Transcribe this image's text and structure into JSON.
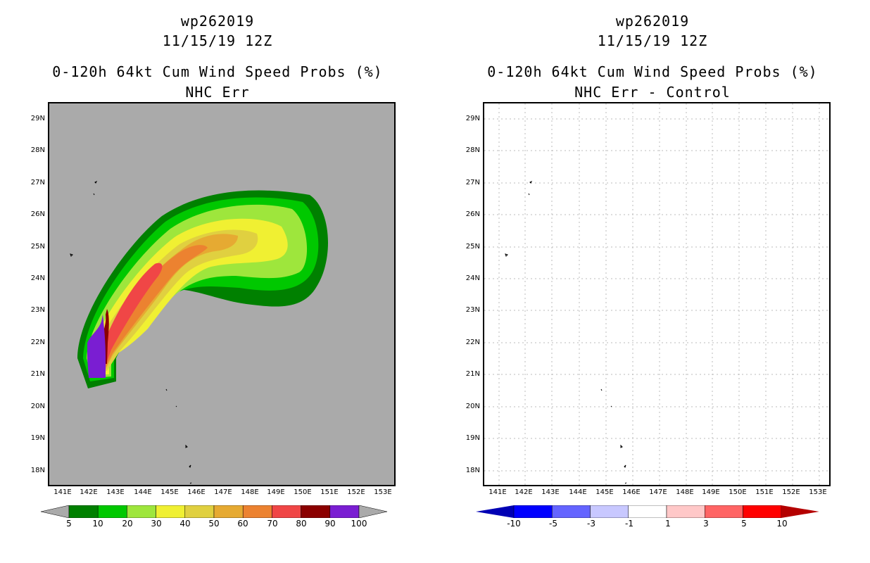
{
  "left_panel": {
    "title1": "wp262019",
    "title2": "11/15/19 12Z",
    "title3": "0-120h 64kt Cum Wind Speed Probs (%)",
    "title4": "NHC Err",
    "colorbar_labels": [
      "5",
      "10",
      "20",
      "30",
      "40",
      "50",
      "60",
      "70",
      "80",
      "90",
      "100"
    ],
    "colorbar_colors": [
      "#008000",
      "#00c800",
      "#9ee63c",
      "#f0f032",
      "#e0d040",
      "#e6aa32",
      "#ec8230",
      "#f04646",
      "#8b0000",
      "#7a1ed2"
    ],
    "background": "#aaaaaa"
  },
  "right_panel": {
    "title1": "wp262019",
    "title2": "11/15/19 12Z",
    "title3": "0-120h 64kt Cum Wind Speed Probs (%)",
    "title4": "NHC Err - Control",
    "colorbar_labels": [
      "-10",
      "-5",
      "-3",
      "-1",
      "1",
      "3",
      "5",
      "10"
    ],
    "colorbar_colors": [
      "#0000b4",
      "#0000ff",
      "#6464ff",
      "#c8c8ff",
      "#ffffff",
      "#ffc8c8",
      "#ff6464",
      "#ff0000",
      "#b40000"
    ]
  },
  "axes": {
    "lat_labels": [
      "29N",
      "28N",
      "27N",
      "26N",
      "25N",
      "24N",
      "23N",
      "22N",
      "21N",
      "20N",
      "19N",
      "18N"
    ],
    "lon_labels": [
      "141E",
      "142E",
      "143E",
      "144E",
      "145E",
      "146E",
      "147E",
      "148E",
      "149E",
      "150E",
      "151E",
      "152E",
      "153E"
    ]
  }
}
